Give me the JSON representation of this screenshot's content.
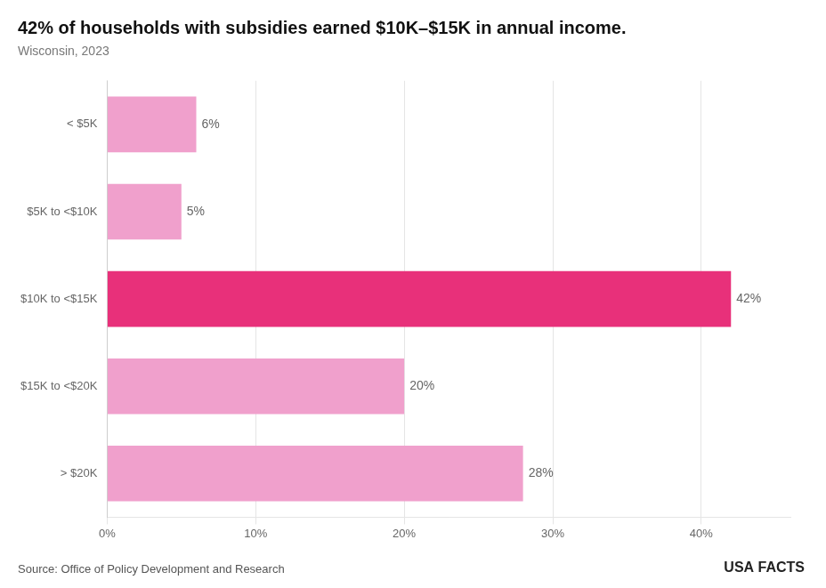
{
  "chart_data": {
    "type": "bar",
    "orientation": "horizontal",
    "title": "42% of households with subsidies earned $10K–$15K in annual income.",
    "subtitle": "Wisconsin, 2023",
    "categories": [
      "< $5K",
      "$5K to <$10K",
      "$10K to <$15K",
      "$15K to <$20K",
      "> $20K"
    ],
    "values": [
      6,
      5,
      42,
      20,
      28
    ],
    "value_labels": [
      "6%",
      "5%",
      "42%",
      "20%",
      "28%"
    ],
    "data_labels": true,
    "colors": [
      "#f0a0cc",
      "#f0a0cc",
      "#e8307a",
      "#f0a0cc",
      "#f0a0cc"
    ],
    "xlim": [
      0,
      46
    ],
    "xticks": [
      {
        "value": 0,
        "label": "0%"
      },
      {
        "value": 10,
        "label": "10%"
      },
      {
        "value": 20,
        "label": "20%"
      },
      {
        "value": 30,
        "label": "30%"
      },
      {
        "value": 40,
        "label": "40%"
      }
    ],
    "grid": true,
    "annotations": [
      "Source: Office of Policy Development and Research",
      "USA FACTS"
    ]
  }
}
